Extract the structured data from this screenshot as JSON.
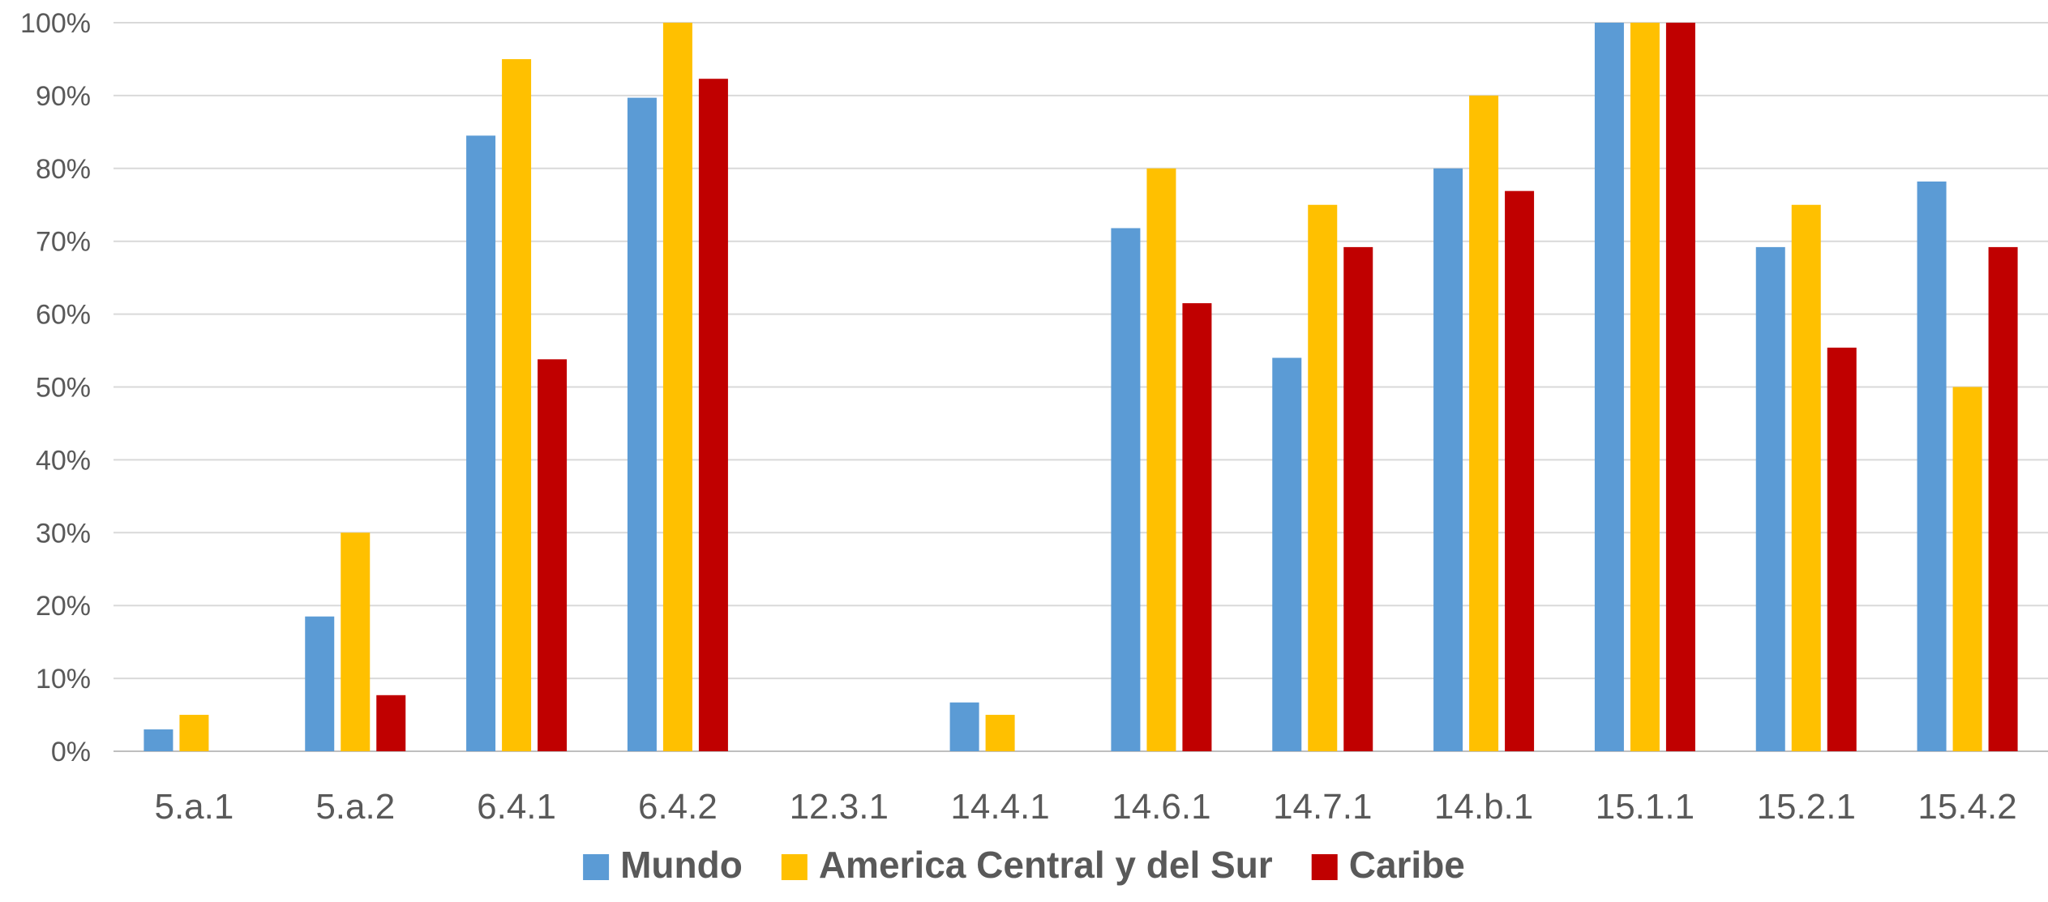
{
  "chart_data": {
    "type": "bar",
    "categories": [
      "5.a.1",
      "5.a.2",
      "6.4.1",
      "6.4.2",
      "12.3.1",
      "14.4.1",
      "14.6.1",
      "14.7.1",
      "14.b.1",
      "15.1.1",
      "15.2.1",
      "15.4.2"
    ],
    "series": [
      {
        "name": "Mundo",
        "color": "#5b9bd5",
        "values": [
          3,
          18.5,
          84.5,
          89.7,
          0,
          6.7,
          71.8,
          54,
          80,
          100,
          69.2,
          78.2
        ]
      },
      {
        "name": "America Central y del Sur",
        "color": "#ffc000",
        "values": [
          5,
          30,
          95,
          100,
          0,
          5,
          80,
          75,
          90,
          100,
          75,
          50
        ]
      },
      {
        "name": "Caribe",
        "color": "#c00000",
        "values": [
          0,
          7.7,
          53.8,
          92.3,
          0,
          0,
          61.5,
          69.2,
          76.9,
          100,
          55.4,
          69.2
        ]
      }
    ],
    "yticks": [
      "0%",
      "10%",
      "20%",
      "30%",
      "40%",
      "50%",
      "60%",
      "70%",
      "80%",
      "90%",
      "100%"
    ],
    "ylim": [
      0,
      100
    ],
    "grid": true,
    "legend_position": "bottom"
  }
}
